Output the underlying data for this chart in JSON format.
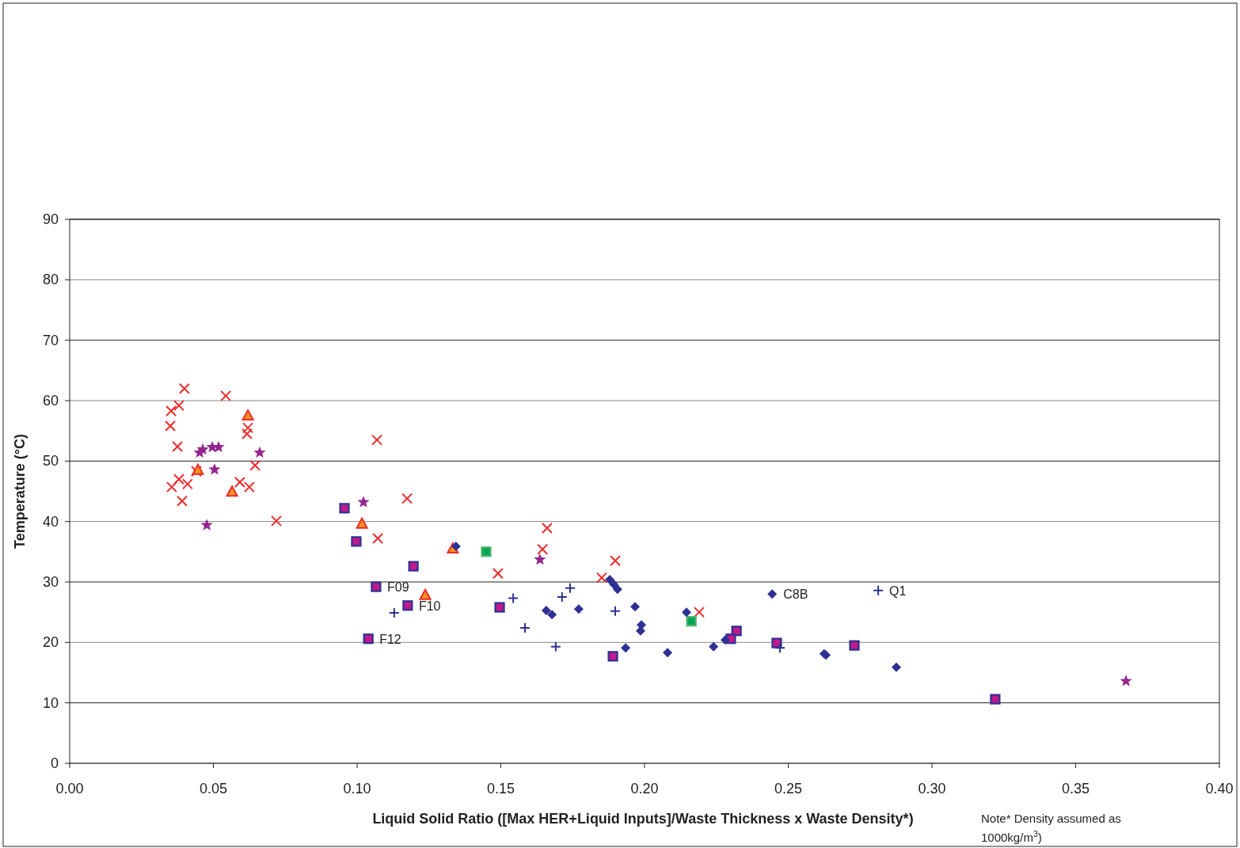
{
  "chart_data": {
    "type": "scatter",
    "xlabel": "Liquid Solid Ratio ([Max HER+Liquid Inputs]/Waste Thickness x Waste Density*)",
    "ylabel": "Temperature (°C)",
    "xlim": [
      0,
      0.4
    ],
    "xticks": [
      {
        "value": 0,
        "label": "0.00"
      },
      {
        "value": 0.05,
        "label": "0.05"
      },
      {
        "value": 0.1,
        "label": "0.10"
      },
      {
        "value": 0.15,
        "label": "0.15"
      },
      {
        "value": 0.2,
        "label": "0.20"
      },
      {
        "value": 0.25,
        "label": "0.25"
      },
      {
        "value": 0.3,
        "label": "0.30"
      },
      {
        "value": 0.35,
        "label": "0.35"
      },
      {
        "value": 0.4,
        "label": "0.40"
      }
    ],
    "ylim": [
      0,
      90
    ],
    "yticks": [
      0,
      10,
      20,
      30,
      40,
      50,
      60,
      70,
      80,
      90
    ],
    "grid": "y",
    "series": [
      {
        "marker": "cross",
        "color": "#ee2a2a",
        "x": [
          0.0353,
          0.035,
          0.038,
          0.0399,
          0.0543,
          0.0375,
          0.062,
          0.0617,
          0.038,
          0.0355,
          0.041,
          0.0391,
          0.0441,
          0.0592,
          0.0625,
          0.0645,
          0.0719,
          0.1069,
          0.1174,
          0.1072,
          0.1661,
          0.1645,
          0.149,
          0.1851,
          0.1898,
          0.219
        ],
        "values": [
          58.3,
          55.8,
          59.2,
          62.0,
          60.8,
          52.4,
          55.5,
          54.5,
          47.0,
          45.7,
          46.2,
          43.4,
          48.3,
          46.5,
          45.7,
          49.3,
          40.1,
          53.5,
          43.8,
          37.2,
          38.9,
          35.4,
          31.4,
          30.7,
          33.5,
          25.0
        ]
      },
      {
        "marker": "star",
        "color": "#93278f",
        "x": [
          0.0452,
          0.0463,
          0.0496,
          0.0518,
          0.0661,
          0.0504,
          0.0477,
          0.1022,
          0.1636,
          0.3675
        ],
        "values": [
          51.4,
          51.9,
          52.3,
          52.3,
          51.4,
          48.6,
          39.4,
          43.2,
          33.7,
          13.6
        ]
      },
      {
        "marker": "triangle",
        "color": "#f7941d",
        "x": [
          0.062,
          0.0446,
          0.0565,
          0.1017,
          0.1237,
          0.1333
        ],
        "values": [
          57.5,
          48.5,
          44.9,
          39.6,
          27.8,
          35.5
        ]
      },
      {
        "marker": "square",
        "color": "#c0198c",
        "x": [
          0.0956,
          0.0997,
          0.1196,
          0.1066,
          0.1176,
          0.1039,
          0.1496,
          0.189,
          0.232,
          0.23,
          0.246,
          0.273,
          0.322
        ],
        "values": [
          42.2,
          36.7,
          32.6,
          29.2,
          26.1,
          20.6,
          25.8,
          17.7,
          21.9,
          20.6,
          19.9,
          19.5,
          10.6
        ]
      },
      {
        "marker": "square",
        "color": "#00a651",
        "x": [
          0.1449,
          0.2163
        ],
        "values": [
          35.0,
          23.5
        ]
      },
      {
        "marker": "diamond",
        "color": "#2e3192",
        "x": [
          0.1344,
          0.1879,
          0.1893,
          0.1906,
          0.1658,
          0.1678,
          0.1771,
          0.1967,
          0.1989,
          0.1986,
          0.1934,
          0.208,
          0.2146,
          0.224,
          0.2281,
          0.2444,
          0.2625,
          0.2631,
          0.2876
        ],
        "values": [
          35.9,
          30.4,
          29.6,
          28.8,
          25.3,
          24.6,
          25.5,
          25.9,
          22.9,
          21.9,
          19.1,
          18.3,
          25.0,
          19.3,
          20.4,
          28.0,
          18.1,
          17.9,
          15.9
        ]
      },
      {
        "marker": "plus",
        "color": "#2e3192",
        "x": [
          0.1129,
          0.1543,
          0.1584,
          0.1691,
          0.1713,
          0.1741,
          0.1898,
          0.2471,
          0.2813
        ],
        "values": [
          24.9,
          27.3,
          22.4,
          19.3,
          27.5,
          29.0,
          25.2,
          19.1,
          28.6
        ]
      }
    ],
    "annotations": [
      {
        "text": "F09",
        "x": 0.1066,
        "y": 29.2
      },
      {
        "text": "F10",
        "x": 0.1176,
        "y": 26.1
      },
      {
        "text": "F12",
        "x": 0.1039,
        "y": 20.6
      },
      {
        "text": "C8B",
        "x": 0.2444,
        "y": 28.0
      },
      {
        "text": "Q1",
        "x": 0.2813,
        "y": 28.6
      },
      "Note* Density assumed as 1000kg/m$^{3}$)"
    ]
  }
}
